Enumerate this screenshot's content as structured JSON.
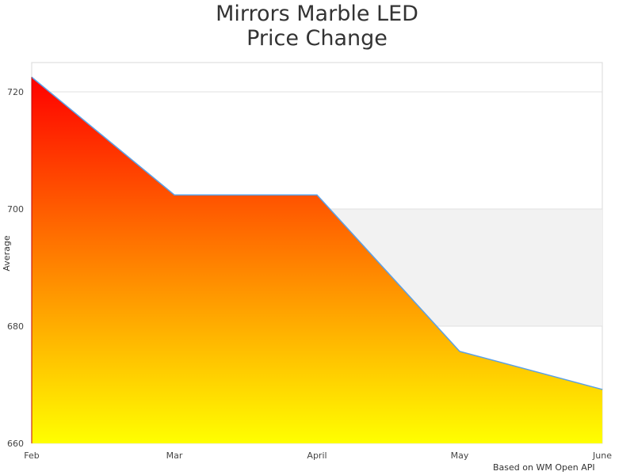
{
  "chart_data": {
    "type": "area",
    "title_lines": [
      "Mirrors Marble LED",
      "Price Change"
    ],
    "xlabel": "",
    "ylabel": "Average",
    "categories": [
      "Feb",
      "Mar",
      "April",
      "May",
      "June"
    ],
    "values": [
      722.5,
      702.4,
      702.4,
      675.7,
      669.2
    ],
    "ylim": [
      660,
      725
    ],
    "yticks": [
      660,
      680,
      700,
      720
    ],
    "grid": true,
    "shaded_band": [
      680,
      700
    ],
    "fill_gradient": {
      "top": "#ff0000",
      "bottom": "#ffff00"
    },
    "line_color": "#5aa0e6",
    "band_color": "#f2f2f2"
  },
  "credit": "Based on WM Open API"
}
